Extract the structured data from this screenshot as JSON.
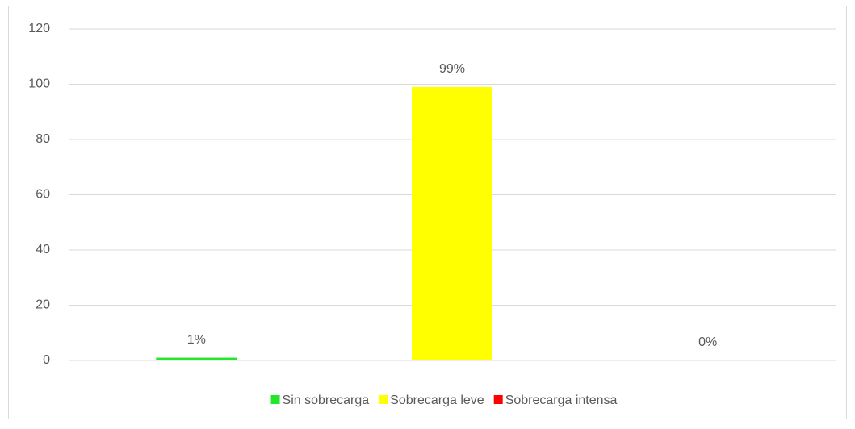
{
  "chart_data": {
    "type": "bar",
    "categories": [
      null
    ],
    "series": [
      {
        "name": "Sin sobrecarga",
        "color": "#22e62a",
        "values": [
          1
        ],
        "value_labels": [
          "1%"
        ]
      },
      {
        "name": "Sobrecarga leve",
        "color": "#ffff00",
        "values": [
          99
        ],
        "value_labels": [
          "99%"
        ]
      },
      {
        "name": "Sobrecarga intensa",
        "color": "#ff0000",
        "values": [
          0
        ],
        "value_labels": [
          "0%"
        ]
      }
    ],
    "ylim": [
      0,
      120
    ],
    "yticks": [
      0,
      20,
      40,
      60,
      80,
      100,
      120
    ],
    "grid": true,
    "legend": "bottom"
  }
}
